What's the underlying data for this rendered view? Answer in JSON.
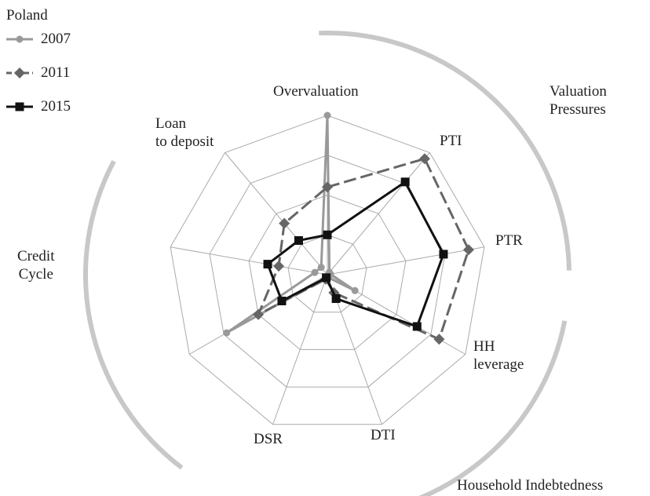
{
  "chart_data": {
    "type": "radar",
    "legend_title": "Poland",
    "categories": [
      "Overvaluation",
      "PTI",
      "PTR",
      "HH\nleverage",
      "DTI",
      "DSR",
      null,
      null,
      "Loan\nto deposit"
    ],
    "groups": [
      "Valuation\nPressures",
      "Household Indebtedness",
      "Credit\nCycle"
    ],
    "ylim": [
      0,
      1
    ],
    "grid_rings": 4,
    "series": [
      {
        "name": "2007",
        "color": "#999999",
        "marker": "circle",
        "dash": false,
        "values": [
          1.0,
          0.02,
          0.02,
          0.2,
          0.02,
          0.02,
          0.73,
          0.08,
          0.06
        ]
      },
      {
        "name": "2011",
        "color": "#666666",
        "marker": "diamond",
        "dash": true,
        "values": [
          0.55,
          0.95,
          0.9,
          0.81,
          0.12,
          0.03,
          0.5,
          0.31,
          0.42
        ]
      },
      {
        "name": "2015",
        "color": "#111111",
        "marker": "square",
        "dash": false,
        "values": [
          0.25,
          0.76,
          0.74,
          0.65,
          0.16,
          0.02,
          0.33,
          0.38,
          0.28
        ]
      }
    ]
  }
}
